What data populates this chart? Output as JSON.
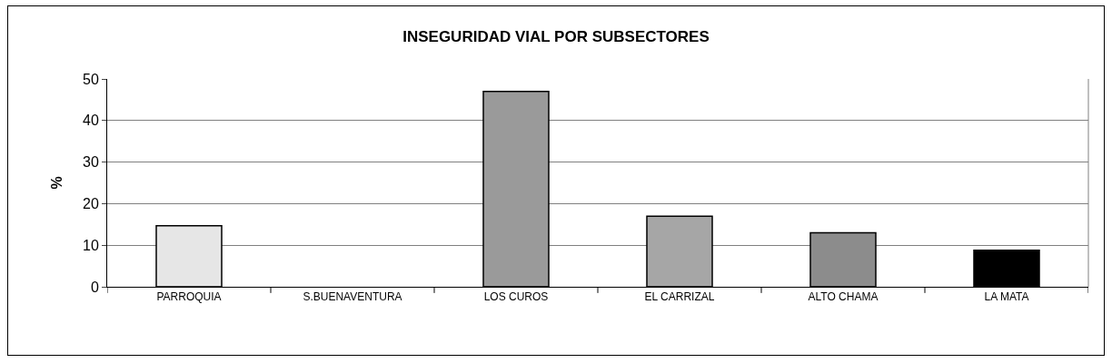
{
  "chart_data": {
    "type": "bar",
    "title": "INSEGURIDAD VIAL POR SUBSECTORES",
    "ylabel": "%",
    "categories": [
      "PARROQUIA",
      "S.BUENAVENTURA",
      "LOS CUROS",
      "EL CARRIZAL",
      "ALTO CHAMA",
      "LA MATA"
    ],
    "values": [
      14.7,
      0,
      47,
      17,
      13,
      8.8
    ],
    "colors": [
      "#e6e6e6",
      "#ffffff",
      "#9a9a9a",
      "#a6a6a6",
      "#8c8c8c",
      "#000000"
    ],
    "ylim": [
      0,
      50
    ],
    "yticks": [
      0,
      10,
      20,
      30,
      40,
      50
    ],
    "grid": "y"
  }
}
